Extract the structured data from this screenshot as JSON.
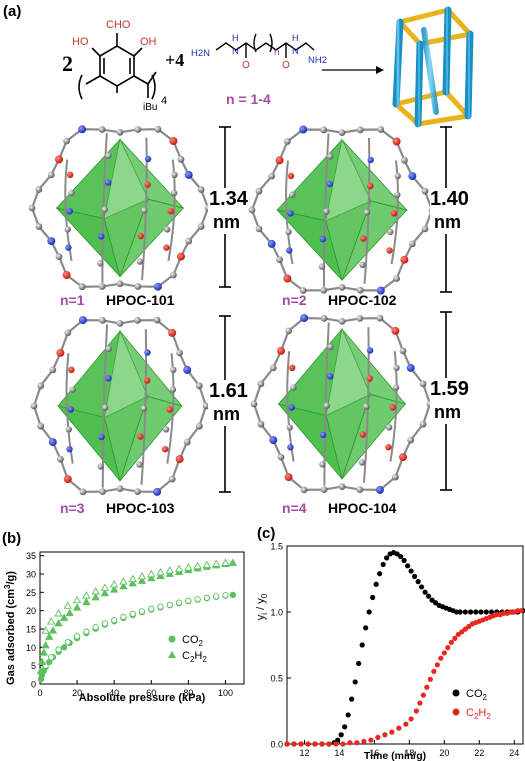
{
  "panel_a": {
    "label": "(a)",
    "reaction": {
      "coef_1": "2",
      "coef_2": "+4",
      "aldehyde_group": "CHO",
      "hydroxyl_left": "HO",
      "hydroxyl_right": "OH",
      "repeat_subscript": "4",
      "alkyl_group": "iBu",
      "amine_left": "H2N",
      "amine_right": "NH2",
      "nh_left": "N",
      "nh_left_h": "H",
      "nh_right": "N",
      "nh_right_h": "H",
      "carbonyl_o": "O",
      "chain_index": "n",
      "n_range": "n = 1-4"
    },
    "cages": [
      {
        "n_label": "n=1",
        "name": "HPOC-101",
        "size": "1.34",
        "unit": "nm"
      },
      {
        "n_label": "n=2",
        "name": "HPOC-102",
        "size": "1.40",
        "unit": "nm"
      },
      {
        "n_label": "n=3",
        "name": "HPOC-103",
        "size": "1.61",
        "unit": "nm"
      },
      {
        "n_label": "n=4",
        "name": "HPOC-104",
        "size": "1.59",
        "unit": "nm"
      }
    ]
  },
  "panel_b": {
    "label": "(b)",
    "legend_co2": "CO2",
    "legend_c2h2": "C2H2"
  },
  "panel_c": {
    "label": "(c)",
    "legend_co2": "CO2",
    "legend_c2h2": "C2H2"
  },
  "colors": {
    "purple_label": "#a0509f",
    "cage_green": "#3cb83c",
    "plot_green": "#5cc05c",
    "co2_black": "#000000",
    "c2h2_red": "#e8281e",
    "prism_blue": "#2fb4e8",
    "prism_gold": "#e8b41e"
  },
  "chart_data": [
    {
      "type": "scatter",
      "xlabel": "Absolute pressure (kPa)",
      "ylabel": "Gas adsorbed (cm3/g)",
      "xlim": [
        0,
        110
      ],
      "ylim": [
        0,
        36
      ],
      "xticks": [
        "0",
        "20",
        "40",
        "60",
        "80",
        "100"
      ],
      "yticks": [
        "0",
        "5",
        "10",
        "15",
        "20",
        "25",
        "30",
        "35"
      ],
      "grid": false,
      "legend": "right",
      "series": [
        {
          "name": "CO2",
          "marker": "circle",
          "role": "adsorption",
          "x": [
            0.5,
            1,
            2,
            3,
            5,
            7,
            10,
            13,
            16,
            20,
            25,
            30,
            35,
            40,
            45,
            50,
            55,
            60,
            65,
            70,
            75,
            80,
            85,
            90,
            95,
            100,
            104
          ],
          "y": [
            1.3,
            2.4,
            3.5,
            4.6,
            6.0,
            7.3,
            8.8,
            10.0,
            11.2,
            12.5,
            13.9,
            15.1,
            16.2,
            17.1,
            18.0,
            18.8,
            19.6,
            20.3,
            20.9,
            21.5,
            22.0,
            22.6,
            23.0,
            23.4,
            23.8,
            24.1,
            24.3
          ]
        },
        {
          "name": "CO2",
          "marker": "open-circle",
          "role": "desorption",
          "x": [
            3,
            6,
            10,
            15,
            20,
            25,
            30,
            35,
            40,
            45,
            50,
            55,
            60,
            65,
            70,
            75,
            80,
            85,
            90,
            95,
            100
          ],
          "y": [
            5.0,
            7.3,
            9.4,
            11.4,
            13.0,
            14.3,
            15.5,
            16.5,
            17.4,
            18.3,
            19.1,
            19.8,
            20.5,
            21.1,
            21.6,
            22.2,
            22.7,
            23.1,
            23.5,
            23.9,
            24.2
          ]
        },
        {
          "name": "C2H2",
          "marker": "triangle",
          "role": "adsorption",
          "x": [
            0.5,
            1,
            2,
            3,
            5,
            7,
            10,
            13,
            16,
            20,
            25,
            30,
            35,
            40,
            45,
            50,
            55,
            60,
            65,
            70,
            75,
            80,
            85,
            90,
            95,
            100,
            104
          ],
          "y": [
            3.5,
            6.0,
            8.5,
            10.5,
            12.8,
            14.5,
            16.5,
            18.0,
            19.3,
            20.8,
            22.3,
            23.6,
            24.7,
            25.7,
            26.6,
            27.4,
            28.1,
            28.8,
            29.4,
            30.0,
            30.5,
            31.0,
            31.5,
            31.9,
            32.3,
            32.7,
            33.0
          ]
        },
        {
          "name": "C2H2",
          "marker": "open-triangle",
          "role": "desorption",
          "x": [
            3,
            6,
            10,
            15,
            20,
            25,
            30,
            35,
            40,
            45,
            50,
            55,
            60,
            65,
            70,
            75,
            80,
            85,
            90,
            95,
            100
          ],
          "y": [
            14.5,
            17.0,
            19.2,
            21.3,
            22.8,
            24.1,
            25.2,
            26.2,
            27.1,
            27.9,
            28.6,
            29.3,
            29.9,
            30.4,
            30.9,
            31.3,
            31.7,
            32.1,
            32.4,
            32.7,
            33.0
          ]
        }
      ]
    },
    {
      "type": "scatter",
      "xlabel": "Time (min/g)",
      "ylabel": "yi / y0",
      "xlim": [
        11,
        24.5
      ],
      "ylim": [
        0,
        1.5
      ],
      "xticks": [
        "12",
        "14",
        "16",
        "18",
        "20",
        "22",
        "24"
      ],
      "yticks": [
        "0.0",
        "0.5",
        "1.0",
        "1.5"
      ],
      "grid": false,
      "legend": "right",
      "series": [
        {
          "name": "CO2",
          "marker": "circle",
          "x": [
            11.0,
            11.4,
            11.8,
            12.2,
            12.6,
            13.0,
            13.4,
            13.7,
            13.9,
            14.1,
            14.3,
            14.5,
            14.7,
            14.9,
            15.1,
            15.3,
            15.5,
            15.7,
            15.9,
            16.1,
            16.3,
            16.5,
            16.7,
            16.9,
            17.1,
            17.3,
            17.5,
            17.7,
            17.9,
            18.1,
            18.3,
            18.5,
            18.7,
            18.9,
            19.1,
            19.3,
            19.5,
            19.7,
            19.9,
            20.1,
            20.3,
            20.5,
            20.7,
            20.9,
            21.2,
            21.5,
            21.8,
            22.1,
            22.4,
            22.7,
            23.0,
            23.3,
            23.6,
            23.9,
            24.2,
            24.5
          ],
          "y": [
            0.0,
            0.0,
            0.0,
            0.0,
            0.0,
            0.0,
            0.0,
            0.01,
            0.03,
            0.07,
            0.13,
            0.22,
            0.34,
            0.47,
            0.61,
            0.75,
            0.88,
            1.0,
            1.11,
            1.21,
            1.29,
            1.36,
            1.41,
            1.44,
            1.45,
            1.44,
            1.42,
            1.39,
            1.35,
            1.31,
            1.27,
            1.23,
            1.19,
            1.15,
            1.12,
            1.09,
            1.07,
            1.05,
            1.04,
            1.03,
            1.02,
            1.01,
            1.0,
            1.0,
            1.0,
            1.0,
            1.0,
            1.0,
            1.0,
            1.0,
            1.0,
            1.0,
            1.0,
            1.0,
            1.0,
            1.01
          ]
        },
        {
          "name": "C2H2",
          "marker": "circle",
          "x": [
            11.0,
            11.4,
            11.8,
            12.2,
            12.6,
            13.0,
            13.4,
            13.8,
            14.2,
            14.6,
            15.0,
            15.4,
            15.8,
            16.2,
            16.6,
            17.0,
            17.4,
            17.8,
            18.1,
            18.4,
            18.6,
            18.8,
            19.0,
            19.2,
            19.4,
            19.6,
            19.8,
            20.0,
            20.2,
            20.4,
            20.6,
            20.8,
            21.0,
            21.2,
            21.4,
            21.6,
            21.8,
            22.0,
            22.2,
            22.4,
            22.6,
            22.8,
            23.0,
            23.2,
            23.4,
            23.6,
            23.8,
            24.0,
            24.2,
            24.4
          ],
          "y": [
            0.0,
            0.0,
            0.0,
            0.0,
            0.0,
            0.0,
            0.0,
            0.0,
            0.0,
            0.01,
            0.01,
            0.02,
            0.03,
            0.05,
            0.07,
            0.09,
            0.12,
            0.15,
            0.19,
            0.25,
            0.31,
            0.37,
            0.43,
            0.49,
            0.55,
            0.6,
            0.65,
            0.69,
            0.73,
            0.77,
            0.8,
            0.83,
            0.85,
            0.87,
            0.89,
            0.91,
            0.92,
            0.93,
            0.94,
            0.95,
            0.96,
            0.97,
            0.98,
            0.98,
            0.99,
            0.99,
            1.0,
            1.0,
            1.01,
            1.01
          ]
        }
      ]
    }
  ]
}
